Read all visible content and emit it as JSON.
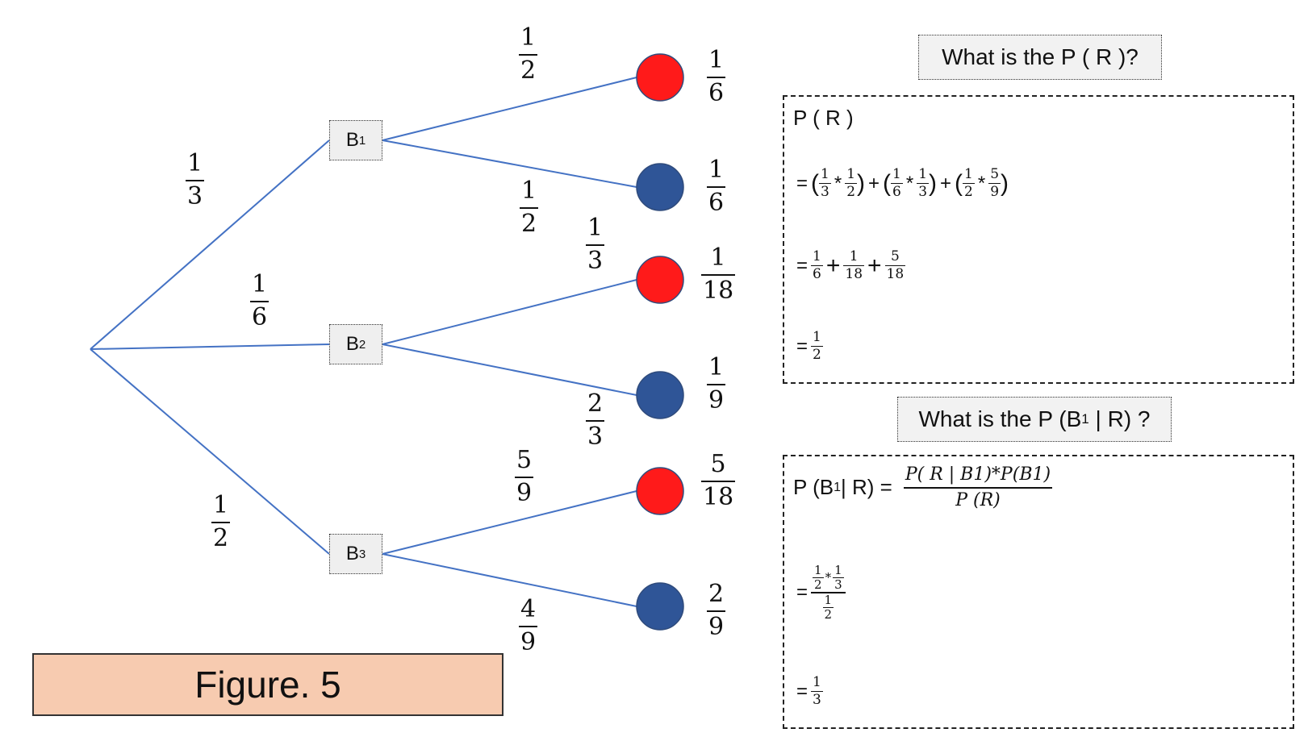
{
  "tree": {
    "first_level_probs": [
      {
        "num": "1",
        "den": "3"
      },
      {
        "num": "1",
        "den": "6"
      },
      {
        "num": "1",
        "den": "2"
      }
    ],
    "nodes": [
      {
        "label": "B",
        "sub": "1"
      },
      {
        "label": "B",
        "sub": "2"
      },
      {
        "label": "B",
        "sub": "3"
      }
    ],
    "second_level_probs": [
      {
        "num": "1",
        "den": "2"
      },
      {
        "num": "1",
        "den": "2"
      },
      {
        "num": "1",
        "den": "3"
      },
      {
        "num": "2",
        "den": "3"
      },
      {
        "num": "5",
        "den": "9"
      },
      {
        "num": "4",
        "den": "9"
      }
    ],
    "outcomes": [
      {
        "color": "#ff1a1a",
        "name": "red",
        "num": "1",
        "den": "6"
      },
      {
        "color": "#2f5597",
        "name": "blue",
        "num": "1",
        "den": "6"
      },
      {
        "color": "#ff1a1a",
        "name": "red",
        "num": "1",
        "den": "18"
      },
      {
        "color": "#2f5597",
        "name": "blue",
        "num": "1",
        "den": "9"
      },
      {
        "color": "#ff1a1a",
        "name": "red",
        "num": "5",
        "den": "18"
      },
      {
        "color": "#2f5597",
        "name": "blue",
        "num": "2",
        "den": "9"
      }
    ],
    "line_color": "#4472c4"
  },
  "question1": {
    "title": "What is the P ( R )?",
    "line1": "P ( R )",
    "eq": "=",
    "plus": "+",
    "times": "*",
    "open": "(",
    "close": ")",
    "line2_fracs": [
      {
        "num": "1",
        "den": "3"
      },
      {
        "num": "1",
        "den": "2"
      },
      {
        "num": "1",
        "den": "6"
      },
      {
        "num": "1",
        "den": "3"
      },
      {
        "num": "1",
        "den": "2"
      },
      {
        "num": "5",
        "den": "9"
      }
    ],
    "line3_fracs": [
      {
        "num": "1",
        "den": "6"
      },
      {
        "num": "1",
        "den": "18"
      },
      {
        "num": "5",
        "den": "18"
      }
    ],
    "result": {
      "num": "1",
      "den": "2"
    }
  },
  "question2": {
    "title_prefix": "What is the P (B",
    "title_sub": "1",
    "title_suffix": " | R) ?",
    "lhs_prefix": "P (B",
    "lhs_sub": "1",
    "lhs_suffix": " | R) =",
    "formula_num": "P( R | B1)*P(B1)",
    "formula_den": "P (R)",
    "step_num": [
      {
        "num": "1",
        "den": "2"
      },
      {
        "num": "1",
        "den": "3"
      }
    ],
    "step_den": {
      "num": "1",
      "den": "2"
    },
    "eq": "=",
    "times": "*",
    "result": {
      "num": "1",
      "den": "3"
    }
  },
  "figure_label": "Figure. 5"
}
